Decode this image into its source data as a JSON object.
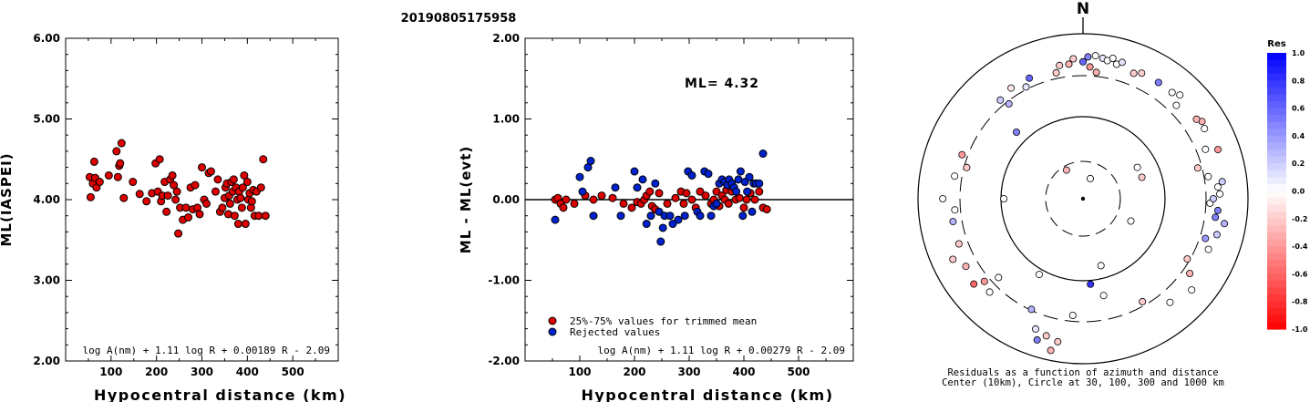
{
  "title": "20190805175958",
  "chart_data": [
    {
      "type": "scatter",
      "xlabel": "Hypocentral distance (km)",
      "ylabel": "ML(IASPEI)",
      "xlim": [
        0,
        600
      ],
      "ylim": [
        2.0,
        6.0
      ],
      "x_ticks": [
        "100",
        "200",
        "300",
        "400",
        "500"
      ],
      "y_ticks": [
        "2.00",
        "3.00",
        "4.00",
        "5.00",
        "6.00"
      ],
      "formula": "log A(nm) + 1.11 log R + 0.00189 R - 2.09",
      "series": [
        {
          "color": "#dd0000",
          "points": [
            [
              53,
              4.28
            ],
            [
              55,
              4.03
            ],
            [
              60,
              4.2
            ],
            [
              63,
              4.47
            ],
            [
              65,
              4.27
            ],
            [
              68,
              4.15
            ],
            [
              75,
              4.22
            ],
            [
              95,
              4.3
            ],
            [
              112,
              4.6
            ],
            [
              115,
              4.28
            ],
            [
              118,
              4.42
            ],
            [
              120,
              4.45
            ],
            [
              123,
              4.7
            ],
            [
              128,
              4.02
            ],
            [
              148,
              4.22
            ],
            [
              163,
              4.07
            ],
            [
              178,
              3.98
            ],
            [
              190,
              4.08
            ],
            [
              198,
              4.45
            ],
            [
              203,
              4.1
            ],
            [
              207,
              4.5
            ],
            [
              210,
              3.98
            ],
            [
              213,
              4.05
            ],
            [
              218,
              4.22
            ],
            [
              222,
              3.85
            ],
            [
              225,
              4.05
            ],
            [
              230,
              4.25
            ],
            [
              235,
              4.3
            ],
            [
              238,
              4.18
            ],
            [
              242,
              4.0
            ],
            [
              245,
              4.1
            ],
            [
              248,
              3.58
            ],
            [
              252,
              3.9
            ],
            [
              258,
              3.75
            ],
            [
              265,
              3.9
            ],
            [
              270,
              3.78
            ],
            [
              275,
              4.15
            ],
            [
              280,
              3.88
            ],
            [
              285,
              4.18
            ],
            [
              290,
              3.9
            ],
            [
              295,
              3.82
            ],
            [
              300,
              4.4
            ],
            [
              305,
              4.0
            ],
            [
              310,
              3.95
            ],
            [
              315,
              4.33
            ],
            [
              320,
              4.35
            ],
            [
              330,
              4.1
            ],
            [
              335,
              4.25
            ],
            [
              340,
              3.85
            ],
            [
              345,
              3.9
            ],
            [
              350,
              4.02
            ],
            [
              352,
              4.15
            ],
            [
              355,
              4.2
            ],
            [
              358,
              3.82
            ],
            [
              360,
              4.05
            ],
            [
              362,
              3.95
            ],
            [
              365,
              4.22
            ],
            [
              368,
              4.1
            ],
            [
              370,
              4.25
            ],
            [
              372,
              3.8
            ],
            [
              375,
              4.15
            ],
            [
              378,
              4.0
            ],
            [
              380,
              3.7
            ],
            [
              382,
              4.1
            ],
            [
              385,
              4.02
            ],
            [
              388,
              3.9
            ],
            [
              390,
              4.15
            ],
            [
              393,
              4.3
            ],
            [
              396,
              3.7
            ],
            [
              400,
              4.22
            ],
            [
              402,
              4.0
            ],
            [
              405,
              4.08
            ],
            [
              408,
              3.9
            ],
            [
              410,
              3.98
            ],
            [
              413,
              4.12
            ],
            [
              416,
              3.8
            ],
            [
              420,
              4.1
            ],
            [
              425,
              3.8
            ],
            [
              430,
              4.15
            ],
            [
              435,
              4.5
            ],
            [
              440,
              3.8
            ]
          ]
        }
      ]
    },
    {
      "type": "scatter",
      "xlabel": "Hypocentral distance (km)",
      "ylabel": "ML - ML(evt)",
      "xlim": [
        0,
        600
      ],
      "ylim": [
        -2.0,
        2.0
      ],
      "x_ticks": [
        "100",
        "200",
        "300",
        "400",
        "500"
      ],
      "y_ticks": [
        "-2.00",
        "-1.00",
        "0.00",
        "1.00",
        "2.00"
      ],
      "annotation": "ML= 4.32",
      "formula": "log A(nm) + 1.11 log R + 0.00279 R - 2.09",
      "legend": [
        "25%-75% values for trimmed mean",
        "Rejected values"
      ],
      "series": [
        {
          "name": "25%-75% values for trimmed mean",
          "color": "#dd0000",
          "points": [
            [
              55,
              0.0
            ],
            [
              60,
              0.02
            ],
            [
              65,
              -0.05
            ],
            [
              70,
              -0.1
            ],
            [
              75,
              0.0
            ],
            [
              90,
              -0.05
            ],
            [
              110,
              0.05
            ],
            [
              125,
              0.0
            ],
            [
              140,
              0.05
            ],
            [
              160,
              0.02
            ],
            [
              180,
              -0.05
            ],
            [
              195,
              -0.1
            ],
            [
              205,
              -0.03
            ],
            [
              212,
              -0.05
            ],
            [
              218,
              0.0
            ],
            [
              222,
              0.05
            ],
            [
              228,
              0.1
            ],
            [
              232,
              -0.08
            ],
            [
              238,
              -0.12
            ],
            [
              245,
              0.08
            ],
            [
              260,
              -0.05
            ],
            [
              275,
              0.02
            ],
            [
              285,
              0.1
            ],
            [
              290,
              -0.05
            ],
            [
              295,
              0.08
            ],
            [
              305,
              0.0
            ],
            [
              312,
              -0.1
            ],
            [
              320,
              0.1
            ],
            [
              330,
              0.05
            ],
            [
              340,
              -0.05
            ],
            [
              345,
              0.0
            ],
            [
              350,
              0.1
            ],
            [
              355,
              -0.08
            ],
            [
              360,
              0.05
            ],
            [
              365,
              0.0
            ],
            [
              368,
              0.12
            ],
            [
              372,
              -0.05
            ],
            [
              378,
              0.1
            ],
            [
              385,
              0.0
            ],
            [
              392,
              0.02
            ],
            [
              400,
              -0.1
            ],
            [
              405,
              0.0
            ],
            [
              412,
              0.08
            ],
            [
              420,
              0.0
            ],
            [
              428,
              0.1
            ],
            [
              435,
              -0.1
            ],
            [
              442,
              -0.12
            ]
          ]
        },
        {
          "name": "Rejected values",
          "color": "#0022cc",
          "points": [
            [
              55,
              -0.25
            ],
            [
              100,
              0.28
            ],
            [
              105,
              0.1
            ],
            [
              115,
              0.4
            ],
            [
              120,
              0.48
            ],
            [
              125,
              -0.2
            ],
            [
              165,
              0.15
            ],
            [
              175,
              -0.2
            ],
            [
              200,
              0.35
            ],
            [
              205,
              0.15
            ],
            [
              215,
              0.25
            ],
            [
              222,
              -0.3
            ],
            [
              230,
              -0.2
            ],
            [
              238,
              0.2
            ],
            [
              245,
              -0.15
            ],
            [
              248,
              -0.52
            ],
            [
              252,
              -0.35
            ],
            [
              255,
              -0.2
            ],
            [
              265,
              -0.2
            ],
            [
              270,
              -0.3
            ],
            [
              280,
              -0.25
            ],
            [
              292,
              -0.2
            ],
            [
              298,
              0.35
            ],
            [
              305,
              0.3
            ],
            [
              315,
              -0.15
            ],
            [
              320,
              -0.2
            ],
            [
              328,
              0.35
            ],
            [
              335,
              0.32
            ],
            [
              340,
              -0.2
            ],
            [
              345,
              -0.08
            ],
            [
              350,
              -0.05
            ],
            [
              355,
              0.2
            ],
            [
              360,
              0.25
            ],
            [
              365,
              0.22
            ],
            [
              370,
              0.18
            ],
            [
              373,
              0.25
            ],
            [
              378,
              0.2
            ],
            [
              382,
              0.15
            ],
            [
              386,
              0.1
            ],
            [
              390,
              0.25
            ],
            [
              394,
              0.35
            ],
            [
              398,
              -0.2
            ],
            [
              402,
              0.22
            ],
            [
              406,
              0.1
            ],
            [
              410,
              0.28
            ],
            [
              415,
              -0.15
            ],
            [
              418,
              0.2
            ],
            [
              422,
              0.2
            ],
            [
              428,
              0.2
            ],
            [
              435,
              0.57
            ]
          ]
        }
      ]
    },
    {
      "type": "scatter",
      "projection": "polar",
      "north_label": "N",
      "caption": [
        "Residuals as a function of azimuth and distance",
        "Center (10km), Circle at 30, 100, 300 and 1000 km"
      ],
      "colorbar": {
        "title": "Res",
        "ticks": [
          "1.0",
          "0.8",
          "0.6",
          "0.4",
          "0.2",
          "0.0",
          "-0.2",
          "-0.4",
          "-0.6",
          "-0.8",
          "-1.0"
        ],
        "range": [
          -1.0,
          1.0
        ],
        "positive_color": "#0000ff",
        "negative_color": "#ff0000"
      },
      "points_az_r_res": [
        [
          2,
          0.86,
          0.5
        ],
        [
          5,
          0.87,
          0.0
        ],
        [
          8,
          0.86,
          0.1
        ],
        [
          10,
          0.85,
          0.0
        ],
        [
          12,
          0.87,
          0.0
        ],
        [
          14,
          0.84,
          0.0
        ],
        [
          16,
          0.86,
          0.1
        ],
        [
          -4,
          0.85,
          -0.2
        ],
        [
          -6,
          0.82,
          -0.3
        ],
        [
          0,
          0.83,
          0.6
        ],
        [
          3,
          0.8,
          -0.4
        ],
        [
          6,
          0.77,
          -0.3
        ],
        [
          -10,
          0.82,
          -0.2
        ],
        [
          -12,
          0.78,
          -0.2
        ],
        [
          -24,
          0.8,
          0.6
        ],
        [
          -27,
          0.76,
          0.1
        ],
        [
          -33,
          0.8,
          -0.1
        ],
        [
          -40,
          0.78,
          0.2
        ],
        [
          -38,
          0.73,
          0.3
        ],
        [
          -45,
          0.57,
          0.5
        ],
        [
          -70,
          0.78,
          -0.4
        ],
        [
          -75,
          0.73,
          -0.2
        ],
        [
          -80,
          0.79,
          0.0
        ],
        [
          -90,
          0.85,
          0.0
        ],
        [
          -95,
          0.78,
          0.0
        ],
        [
          -100,
          0.8,
          0.3
        ],
        [
          -110,
          0.8,
          -0.2
        ],
        [
          -115,
          0.87,
          -0.2
        ],
        [
          -120,
          0.82,
          -0.3
        ],
        [
          -128,
          0.84,
          -0.6
        ],
        [
          -130,
          0.78,
          -0.4
        ],
        [
          -133,
          0.7,
          0.0
        ],
        [
          -135,
          0.8,
          0.0
        ],
        [
          -155,
          0.74,
          0.3
        ],
        [
          -160,
          0.84,
          0.1
        ],
        [
          -162,
          0.9,
          0.5
        ],
        [
          -165,
          0.86,
          -0.2
        ],
        [
          -168,
          0.94,
          -0.3
        ],
        [
          -170,
          0.88,
          -0.2
        ],
        [
          -175,
          0.71,
          0.0
        ],
        [
          -150,
          0.53,
          0.0
        ],
        [
          -90,
          0.48,
          0.0
        ],
        [
          -30,
          0.2,
          -0.3
        ],
        [
          20,
          0.13,
          0.0
        ],
        [
          60,
          0.38,
          0.0
        ],
        [
          70,
          0.38,
          -0.2
        ],
        [
          115,
          0.32,
          0.0
        ],
        [
          165,
          0.42,
          0.0
        ],
        [
          175,
          0.52,
          0.8
        ],
        [
          168,
          0.6,
          0.0
        ],
        [
          150,
          0.72,
          -0.2
        ],
        [
          140,
          0.82,
          0.0
        ],
        [
          130,
          0.86,
          0.0
        ],
        [
          125,
          0.79,
          -0.3
        ],
        [
          120,
          0.73,
          -0.2
        ],
        [
          112,
          0.82,
          0.0
        ],
        [
          108,
          0.78,
          0.4
        ],
        [
          105,
          0.84,
          0.2
        ],
        [
          100,
          0.87,
          0.3
        ],
        [
          98,
          0.81,
          0.5
        ],
        [
          95,
          0.82,
          0.5
        ],
        [
          92,
          0.77,
          0.0
        ],
        [
          90,
          0.79,
          0.2
        ],
        [
          88,
          0.83,
          0.0
        ],
        [
          85,
          0.82,
          0.0
        ],
        [
          83,
          0.85,
          0.2
        ],
        [
          80,
          0.77,
          0.0
        ],
        [
          75,
          0.72,
          -0.2
        ],
        [
          70,
          0.87,
          -0.4
        ],
        [
          68,
          0.8,
          0.0
        ],
        [
          60,
          0.85,
          0.0
        ],
        [
          57,
          0.86,
          -0.3
        ],
        [
          55,
          0.84,
          -0.3
        ],
        [
          45,
          0.8,
          0.0
        ],
        [
          43,
          0.86,
          0.0
        ],
        [
          40,
          0.84,
          0.0
        ],
        [
          33,
          0.84,
          0.5
        ],
        [
          25,
          0.84,
          -0.2
        ],
        [
          22,
          0.82,
          -0.2
        ]
      ]
    }
  ]
}
